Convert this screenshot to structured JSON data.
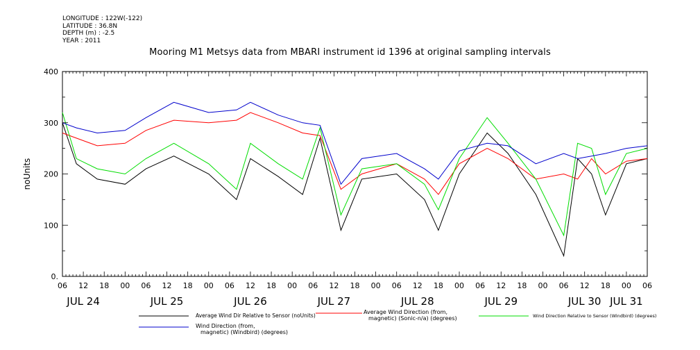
{
  "meta": {
    "longitude": "LONGITUDE : 122W(-122)",
    "latitude": "LATITUDE : 36.8N",
    "depth": "DEPTH (m) : -2.5",
    "year": "YEAR : 2011"
  },
  "chart_data": {
    "type": "line",
    "title": "Mooring M1 Metsys data from MBARI instrument id 1396 at original sampling intervals",
    "ylabel": "noUnits",
    "xlabel": "",
    "ylim": [
      0,
      400
    ],
    "yticks": [
      "0.",
      "100",
      "200",
      "300",
      "400"
    ],
    "xlim_hours_from_jul24_06": [
      0,
      168
    ],
    "hour_tick_labels": [
      "06",
      "12",
      "18",
      "00",
      "06",
      "12",
      "18",
      "00",
      "06",
      "12",
      "18",
      "00",
      "06",
      "12",
      "18",
      "00",
      "06",
      "12",
      "18",
      "00",
      "06",
      "12",
      "18",
      "00",
      "06",
      "12",
      "18",
      "00",
      "06"
    ],
    "day_labels": [
      "JUL 24",
      "JUL 25",
      "JUL 26",
      "JUL 27",
      "JUL 28",
      "JUL 29",
      "JUL 30",
      "JUL 31"
    ],
    "grid": false,
    "legend_position": "bottom",
    "series": [
      {
        "name": "Average Wind Dir Relative to Sensor (noUnits)",
        "color": "#000000",
        "x": [
          "Jul 24 06:00",
          "Jul 24 10:00",
          "Jul 24 16:00",
          "Jul 25 00:00",
          "Jul 25 06:00",
          "Jul 25 14:00",
          "Jul 26 00:00",
          "Jul 26 08:00",
          "Jul 26 12:00",
          "Jul 26 20:00",
          "Jul 27 03:00",
          "Jul 27 08:00",
          "Jul 27 14:00",
          "Jul 27 20:00",
          "Jul 28 06:00",
          "Jul 28 14:00",
          "Jul 28 18:00",
          "Jul 29 00:00",
          "Jul 29 08:00",
          "Jul 29 14:00",
          "Jul 29 22:00",
          "Jul 30 06:00",
          "Jul 30 10:00",
          "Jul 30 14:00",
          "Jul 30 18:00",
          "Jul 31 00:00",
          "Jul 31 06:00"
        ],
        "values": [
          300,
          220,
          190,
          180,
          210,
          235,
          200,
          150,
          230,
          195,
          160,
          270,
          90,
          190,
          200,
          150,
          90,
          200,
          280,
          240,
          160,
          40,
          230,
          200,
          120,
          220,
          230
        ]
      },
      {
        "name": "Average Wind Direction (from, magnetic) (Sonic-n/a) (degrees)",
        "color": "#ff0000",
        "x": [
          "Jul 24 06:00",
          "Jul 24 10:00",
          "Jul 24 16:00",
          "Jul 25 00:00",
          "Jul 25 06:00",
          "Jul 25 14:00",
          "Jul 26 00:00",
          "Jul 26 08:00",
          "Jul 26 12:00",
          "Jul 26 20:00",
          "Jul 27 03:00",
          "Jul 27 08:00",
          "Jul 27 14:00",
          "Jul 27 20:00",
          "Jul 28 06:00",
          "Jul 28 14:00",
          "Jul 28 18:00",
          "Jul 29 00:00",
          "Jul 29 08:00",
          "Jul 29 14:00",
          "Jul 29 22:00",
          "Jul 30 06:00",
          "Jul 30 10:00",
          "Jul 30 14:00",
          "Jul 30 18:00",
          "Jul 31 00:00",
          "Jul 31 06:00"
        ],
        "values": [
          280,
          270,
          255,
          260,
          285,
          305,
          300,
          305,
          320,
          300,
          280,
          275,
          170,
          200,
          220,
          190,
          160,
          220,
          250,
          230,
          190,
          200,
          190,
          230,
          200,
          225,
          230
        ]
      },
      {
        "name": "Wind Direction Relative to Sensor (Windbird) (degrees)",
        "color": "#00dd00",
        "x": [
          "Jul 24 06:00",
          "Jul 24 10:00",
          "Jul 24 16:00",
          "Jul 25 00:00",
          "Jul 25 06:00",
          "Jul 25 14:00",
          "Jul 26 00:00",
          "Jul 26 08:00",
          "Jul 26 12:00",
          "Jul 26 20:00",
          "Jul 27 03:00",
          "Jul 27 08:00",
          "Jul 27 14:00",
          "Jul 27 20:00",
          "Jul 28 06:00",
          "Jul 28 14:00",
          "Jul 28 18:00",
          "Jul 29 00:00",
          "Jul 29 08:00",
          "Jul 29 14:00",
          "Jul 29 22:00",
          "Jul 30 06:00",
          "Jul 30 10:00",
          "Jul 30 14:00",
          "Jul 30 18:00",
          "Jul 31 00:00",
          "Jul 31 06:00"
        ],
        "values": [
          320,
          230,
          210,
          200,
          230,
          260,
          220,
          170,
          260,
          220,
          190,
          290,
          120,
          210,
          220,
          180,
          130,
          230,
          310,
          260,
          190,
          80,
          260,
          250,
          160,
          240,
          250
        ]
      },
      {
        "name": "Wind Direction (from, magnetic) (Windbird) (degrees)",
        "color": "#0000cc",
        "x": [
          "Jul 24 06:00",
          "Jul 24 10:00",
          "Jul 24 16:00",
          "Jul 25 00:00",
          "Jul 25 06:00",
          "Jul 25 14:00",
          "Jul 26 00:00",
          "Jul 26 08:00",
          "Jul 26 12:00",
          "Jul 26 20:00",
          "Jul 27 03:00",
          "Jul 27 08:00",
          "Jul 27 14:00",
          "Jul 27 20:00",
          "Jul 28 06:00",
          "Jul 28 14:00",
          "Jul 28 18:00",
          "Jul 29 00:00",
          "Jul 29 08:00",
          "Jul 29 14:00",
          "Jul 29 22:00",
          "Jul 30 06:00",
          "Jul 30 10:00",
          "Jul 30 14:00",
          "Jul 30 18:00",
          "Jul 31 00:00",
          "Jul 31 06:00"
        ],
        "values": [
          300,
          290,
          280,
          285,
          310,
          340,
          320,
          325,
          340,
          315,
          300,
          295,
          180,
          230,
          240,
          210,
          190,
          245,
          260,
          255,
          220,
          240,
          230,
          235,
          240,
          250,
          255
        ]
      }
    ]
  },
  "legend": {
    "black_l1": "Average Wind Dir Relative to Sensor (noUnits)",
    "red_l1": "Average Wind Direction (from,",
    "red_l2": "magnetic) (Sonic-n/a) (degrees)",
    "green_l1": "Wind Direction Relative to Sensor (Windbird) (degrees)",
    "blue_l1": "Wind Direction (from,",
    "blue_l2": "magnetic) (Windbird) (degrees)"
  }
}
